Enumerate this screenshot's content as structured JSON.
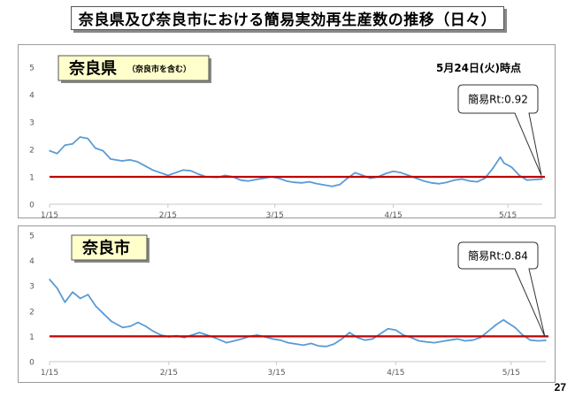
{
  "page": {
    "title": "奈良県及び奈良市における簡易実効再生産数の推移（日々）",
    "page_number": "27"
  },
  "colors": {
    "series": "#5b9bd5",
    "reference_line": "#c00000",
    "label_box_fill": "#ffffcc"
  },
  "chart_data": [
    {
      "type": "line",
      "title": "奈良県",
      "title_note": "（奈良市を含む）",
      "date_label": "5月24日(火)時点",
      "annotation": "簡易Rt:0.92",
      "x_ticks": [
        "1/15",
        "2/15",
        "3/15",
        "4/15",
        "5/15"
      ],
      "y_ticks": [
        "0",
        "1",
        "2",
        "3",
        "4",
        "5"
      ],
      "ylim": [
        0,
        5
      ],
      "xlim": [
        "1/15",
        "5/24"
      ],
      "reference_line": 1,
      "grid": false,
      "series": [
        {
          "values": [
            [
              "1/15",
              1.95
            ],
            [
              "1/17",
              1.85
            ],
            [
              "1/19",
              2.15
            ],
            [
              "1/21",
              2.2
            ],
            [
              "1/23",
              2.45
            ],
            [
              "1/25",
              2.4
            ],
            [
              "1/27",
              2.05
            ],
            [
              "1/29",
              1.95
            ],
            [
              "1/31",
              1.65
            ],
            [
              "2/3",
              1.58
            ],
            [
              "2/5",
              1.62
            ],
            [
              "2/7",
              1.55
            ],
            [
              "2/9",
              1.4
            ],
            [
              "2/11",
              1.25
            ],
            [
              "2/13",
              1.15
            ],
            [
              "2/15",
              1.05
            ],
            [
              "2/17",
              1.15
            ],
            [
              "2/19",
              1.25
            ],
            [
              "2/21",
              1.22
            ],
            [
              "2/23",
              1.1
            ],
            [
              "2/25",
              1.0
            ],
            [
              "2/28",
              0.98
            ],
            [
              "3/2",
              1.05
            ],
            [
              "3/4",
              1.0
            ],
            [
              "3/6",
              0.88
            ],
            [
              "3/8",
              0.85
            ],
            [
              "3/10",
              0.9
            ],
            [
              "3/12",
              0.95
            ],
            [
              "3/14",
              1.0
            ],
            [
              "3/16",
              0.95
            ],
            [
              "3/18",
              0.85
            ],
            [
              "3/20",
              0.8
            ],
            [
              "3/22",
              0.78
            ],
            [
              "3/24",
              0.82
            ],
            [
              "3/26",
              0.75
            ],
            [
              "3/28",
              0.7
            ],
            [
              "3/30",
              0.65
            ],
            [
              "4/1",
              0.72
            ],
            [
              "4/3",
              0.95
            ],
            [
              "4/5",
              1.15
            ],
            [
              "4/7",
              1.05
            ],
            [
              "4/9",
              0.95
            ],
            [
              "4/11",
              1.0
            ],
            [
              "4/13",
              1.12
            ],
            [
              "4/15",
              1.2
            ],
            [
              "4/17",
              1.15
            ],
            [
              "4/19",
              1.05
            ],
            [
              "4/21",
              0.95
            ],
            [
              "4/23",
              0.85
            ],
            [
              "4/25",
              0.78
            ],
            [
              "4/27",
              0.75
            ],
            [
              "4/29",
              0.8
            ],
            [
              "5/1",
              0.88
            ],
            [
              "5/3",
              0.92
            ],
            [
              "5/5",
              0.85
            ],
            [
              "5/7",
              0.82
            ],
            [
              "5/9",
              0.95
            ],
            [
              "5/11",
              1.3
            ],
            [
              "5/13",
              1.72
            ],
            [
              "5/14",
              1.5
            ],
            [
              "5/16",
              1.35
            ],
            [
              "5/18",
              1.05
            ],
            [
              "5/20",
              0.88
            ],
            [
              "5/22",
              0.9
            ],
            [
              "5/24",
              0.92
            ]
          ]
        }
      ]
    },
    {
      "type": "line",
      "title": "奈良市",
      "annotation": "簡易Rt:0.84",
      "x_ticks": [
        "1/15",
        "2/15",
        "3/15",
        "4/15",
        "5/15"
      ],
      "y_ticks": [
        "0",
        "1",
        "2",
        "3",
        "4",
        "5"
      ],
      "ylim": [
        0,
        5
      ],
      "xlim": [
        "1/15",
        "5/24"
      ],
      "reference_line": 1,
      "grid": false,
      "series": [
        {
          "values": [
            [
              "1/15",
              3.25
            ],
            [
              "1/17",
              2.9
            ],
            [
              "1/19",
              2.35
            ],
            [
              "1/21",
              2.75
            ],
            [
              "1/23",
              2.5
            ],
            [
              "1/25",
              2.65
            ],
            [
              "1/27",
              2.2
            ],
            [
              "1/29",
              1.9
            ],
            [
              "1/31",
              1.6
            ],
            [
              "2/3",
              1.35
            ],
            [
              "2/5",
              1.4
            ],
            [
              "2/7",
              1.55
            ],
            [
              "2/9",
              1.4
            ],
            [
              "2/11",
              1.2
            ],
            [
              "2/13",
              1.05
            ],
            [
              "2/15",
              0.98
            ],
            [
              "2/17",
              1.02
            ],
            [
              "2/19",
              0.95
            ],
            [
              "2/21",
              1.05
            ],
            [
              "2/23",
              1.15
            ],
            [
              "2/25",
              1.05
            ],
            [
              "2/28",
              0.88
            ],
            [
              "3/2",
              0.75
            ],
            [
              "3/4",
              0.82
            ],
            [
              "3/6",
              0.9
            ],
            [
              "3/8",
              1.0
            ],
            [
              "3/10",
              1.05
            ],
            [
              "3/12",
              0.98
            ],
            [
              "3/14",
              0.9
            ],
            [
              "3/16",
              0.85
            ],
            [
              "3/18",
              0.75
            ],
            [
              "3/20",
              0.7
            ],
            [
              "3/22",
              0.65
            ],
            [
              "3/24",
              0.72
            ],
            [
              "3/26",
              0.62
            ],
            [
              "3/28",
              0.6
            ],
            [
              "3/30",
              0.7
            ],
            [
              "4/1",
              0.9
            ],
            [
              "4/3",
              1.15
            ],
            [
              "4/5",
              0.95
            ],
            [
              "4/7",
              0.85
            ],
            [
              "4/9",
              0.9
            ],
            [
              "4/11",
              1.1
            ],
            [
              "4/13",
              1.3
            ],
            [
              "4/15",
              1.25
            ],
            [
              "4/17",
              1.05
            ],
            [
              "4/19",
              0.95
            ],
            [
              "4/21",
              0.82
            ],
            [
              "4/23",
              0.78
            ],
            [
              "4/25",
              0.75
            ],
            [
              "4/27",
              0.8
            ],
            [
              "4/29",
              0.85
            ],
            [
              "5/1",
              0.9
            ],
            [
              "5/3",
              0.82
            ],
            [
              "5/5",
              0.85
            ],
            [
              "5/7",
              0.95
            ],
            [
              "5/9",
              1.2
            ],
            [
              "5/11",
              1.45
            ],
            [
              "5/13",
              1.65
            ],
            [
              "5/14",
              1.55
            ],
            [
              "5/16",
              1.35
            ],
            [
              "5/18",
              1.05
            ],
            [
              "5/20",
              0.85
            ],
            [
              "5/22",
              0.82
            ],
            [
              "5/24",
              0.84
            ]
          ]
        }
      ]
    }
  ]
}
